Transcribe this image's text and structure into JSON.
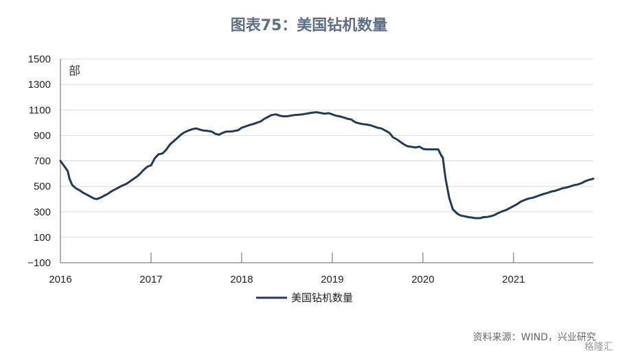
{
  "chart_data": {
    "type": "line",
    "title": "图表75：美国钻机数量",
    "unit_label": "部",
    "ylim": [
      -100,
      1500
    ],
    "y_ticks": [
      -100,
      100,
      300,
      500,
      700,
      900,
      1100,
      1300,
      1500
    ],
    "y_tick_labels": [
      "−100",
      "100",
      "300",
      "500",
      "700",
      "900",
      "1100",
      "1300",
      "1500"
    ],
    "xlim": [
      2016.0,
      2021.88
    ],
    "x_ticks": [
      2016,
      2017,
      2018,
      2019,
      2020,
      2021
    ],
    "x_tick_labels": [
      "2016",
      "2017",
      "2018",
      "2019",
      "2020",
      "2021"
    ],
    "grid": true,
    "legend_position": "bottom",
    "series": [
      {
        "name": "美国钻机数量",
        "color": "#1f3a5c",
        "x": [
          2016.0,
          2016.04,
          2016.08,
          2016.1,
          2016.13,
          2016.17,
          2016.21,
          2016.25,
          2016.29,
          2016.33,
          2016.37,
          2016.4,
          2016.44,
          2016.48,
          2016.52,
          2016.56,
          2016.6,
          2016.64,
          2016.68,
          2016.73,
          2016.77,
          2016.81,
          2016.85,
          2016.88,
          2016.92,
          2016.96,
          2017.0,
          2017.04,
          2017.08,
          2017.13,
          2017.17,
          2017.21,
          2017.25,
          2017.29,
          2017.33,
          2017.37,
          2017.42,
          2017.46,
          2017.5,
          2017.54,
          2017.58,
          2017.63,
          2017.67,
          2017.71,
          2017.75,
          2017.79,
          2017.83,
          2017.88,
          2017.92,
          2017.96,
          2018.0,
          2018.04,
          2018.08,
          2018.13,
          2018.17,
          2018.21,
          2018.25,
          2018.29,
          2018.33,
          2018.38,
          2018.42,
          2018.46,
          2018.5,
          2018.54,
          2018.58,
          2018.63,
          2018.67,
          2018.71,
          2018.75,
          2018.79,
          2018.83,
          2018.88,
          2018.92,
          2018.96,
          2019.0,
          2019.04,
          2019.08,
          2019.13,
          2019.17,
          2019.21,
          2019.25,
          2019.29,
          2019.33,
          2019.38,
          2019.42,
          2019.46,
          2019.5,
          2019.54,
          2019.58,
          2019.63,
          2019.67,
          2019.71,
          2019.75,
          2019.79,
          2019.83,
          2019.88,
          2019.92,
          2019.96,
          2020.0,
          2020.04,
          2020.08,
          2020.13,
          2020.17,
          2020.2,
          2020.22,
          2020.25,
          2020.29,
          2020.33,
          2020.38,
          2020.42,
          2020.46,
          2020.5,
          2020.54,
          2020.58,
          2020.63,
          2020.67,
          2020.71,
          2020.75,
          2020.79,
          2020.83,
          2020.88,
          2020.92,
          2020.96,
          2021.0,
          2021.04,
          2021.08,
          2021.13,
          2021.17,
          2021.21,
          2021.25,
          2021.29,
          2021.33,
          2021.38,
          2021.42,
          2021.46,
          2021.5,
          2021.54,
          2021.58,
          2021.63,
          2021.67,
          2021.71,
          2021.75,
          2021.79,
          2021.83,
          2021.88
        ],
        "values": [
          700,
          660,
          620,
          560,
          510,
          485,
          470,
          450,
          435,
          420,
          405,
          400,
          410,
          425,
          440,
          460,
          475,
          490,
          505,
          520,
          540,
          560,
          580,
          600,
          630,
          655,
          665,
          720,
          750,
          760,
          790,
          830,
          855,
          880,
          905,
          925,
          940,
          950,
          955,
          945,
          938,
          935,
          930,
          912,
          905,
          920,
          930,
          930,
          935,
          940,
          960,
          970,
          980,
          990,
          1000,
          1010,
          1030,
          1045,
          1060,
          1065,
          1055,
          1050,
          1050,
          1055,
          1060,
          1062,
          1065,
          1070,
          1075,
          1080,
          1082,
          1075,
          1070,
          1075,
          1065,
          1055,
          1050,
          1040,
          1030,
          1025,
          1005,
          995,
          990,
          985,
          980,
          970,
          960,
          955,
          940,
          920,
          885,
          870,
          850,
          830,
          815,
          810,
          805,
          812,
          795,
          790,
          790,
          790,
          790,
          745,
          725,
          560,
          410,
          320,
          285,
          270,
          265,
          258,
          255,
          250,
          250,
          258,
          260,
          265,
          275,
          290,
          305,
          315,
          330,
          345,
          360,
          380,
          395,
          405,
          410,
          420,
          430,
          440,
          450,
          460,
          465,
          475,
          485,
          490,
          500,
          510,
          515,
          525,
          540,
          550,
          560
        ]
      }
    ]
  },
  "source_text": "资料来源：WIND，兴业研究",
  "watermark_text": "格隆汇"
}
